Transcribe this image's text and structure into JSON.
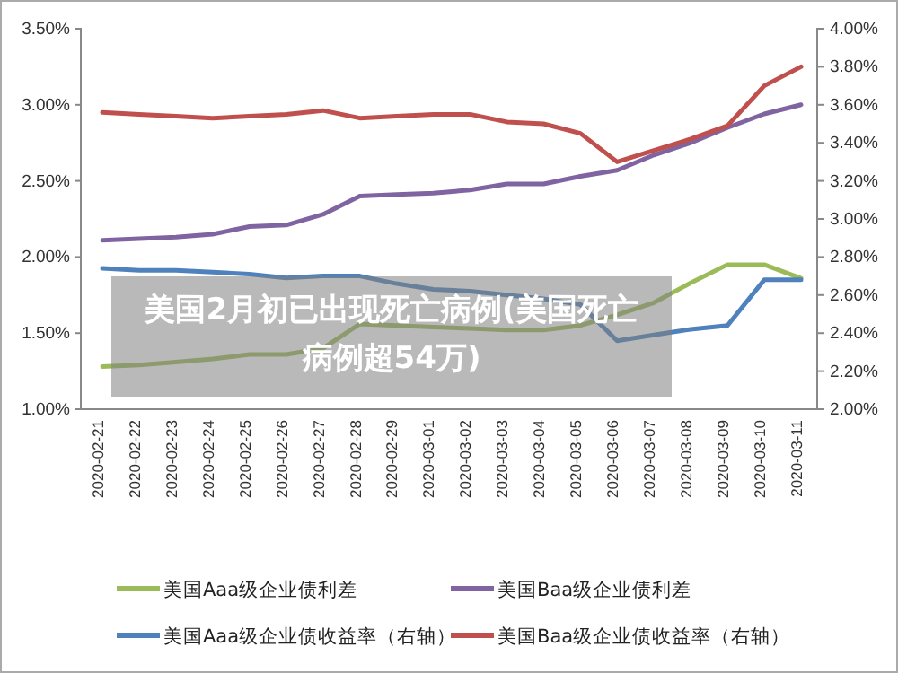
{
  "chart_data": {
    "type": "line",
    "categories": [
      "2020-02-21",
      "2020-02-22",
      "2020-02-23",
      "2020-02-24",
      "2020-02-25",
      "2020-02-26",
      "2020-02-27",
      "2020-02-28",
      "2020-02-29",
      "2020-03-01",
      "2020-03-02",
      "2020-03-03",
      "2020-03-04",
      "2020-03-05",
      "2020-03-06",
      "2020-03-07",
      "2020-03-08",
      "2020-03-09",
      "2020-03-10",
      "2020-03-11"
    ],
    "series": [
      {
        "name": "美国Aaa级企业债利差",
        "color": "#9bbb59",
        "values": [
          1.28,
          1.29,
          1.31,
          1.33,
          1.36,
          1.36,
          1.4,
          1.56,
          1.55,
          1.54,
          1.53,
          1.52,
          1.52,
          1.55,
          1.62,
          1.7,
          1.83,
          1.95,
          1.95,
          1.86
        ]
      },
      {
        "name": "美国Baa级企业债利差",
        "color": "#8064a2",
        "values": [
          2.11,
          2.12,
          2.13,
          2.15,
          2.2,
          2.21,
          2.28,
          2.4,
          2.41,
          2.42,
          2.44,
          2.48,
          2.48,
          2.53,
          2.57,
          2.67,
          2.75,
          2.85,
          2.94,
          3.0
        ]
      },
      {
        "name": "美国Aaa级企业债收益率（右轴）",
        "color": "#4f81bd",
        "axis": "y2",
        "values": [
          2.74,
          2.73,
          2.73,
          2.72,
          2.71,
          2.69,
          2.7,
          2.7,
          2.66,
          2.63,
          2.62,
          2.6,
          2.58,
          2.55,
          2.36,
          2.39,
          2.42,
          2.44,
          2.68,
          2.68
        ]
      },
      {
        "name": "美国Baa级企业债收益率（右轴）",
        "color": "#c0504d",
        "axis": "y2",
        "values": [
          3.56,
          3.55,
          3.54,
          3.53,
          3.54,
          3.55,
          3.57,
          3.53,
          3.54,
          3.55,
          3.55,
          3.51,
          3.5,
          3.45,
          3.3,
          3.36,
          3.42,
          3.49,
          3.7,
          3.8
        ]
      }
    ],
    "ylim": [
      1.0,
      3.5
    ],
    "yticks": [
      {
        "value": 1.0,
        "label": "1.00%"
      },
      {
        "value": 1.5,
        "label": "1.50%"
      },
      {
        "value": 2.0,
        "label": "2.00%"
      },
      {
        "value": 2.5,
        "label": "2.50%"
      },
      {
        "value": 3.0,
        "label": "3.00%"
      },
      {
        "value": 3.5,
        "label": "3.50%"
      }
    ],
    "y2lim": [
      2.0,
      4.0
    ],
    "y2ticks": [
      {
        "value": 2.0,
        "label": "2.00%"
      },
      {
        "value": 2.2,
        "label": "2.20%"
      },
      {
        "value": 2.4,
        "label": "2.40%"
      },
      {
        "value": 2.6,
        "label": "2.60%"
      },
      {
        "value": 2.8,
        "label": "2.80%"
      },
      {
        "value": 3.0,
        "label": "3.00%"
      },
      {
        "value": 3.2,
        "label": "3.20%"
      },
      {
        "value": 3.4,
        "label": "3.40%"
      },
      {
        "value": 3.6,
        "label": "3.60%"
      },
      {
        "value": 3.8,
        "label": "3.80%"
      },
      {
        "value": 4.0,
        "label": "4.00%"
      }
    ],
    "legend": "bottom",
    "grid": false,
    "annotations": [
      "美国2月初已出现死亡病例(美国死亡病例超54万)"
    ]
  }
}
